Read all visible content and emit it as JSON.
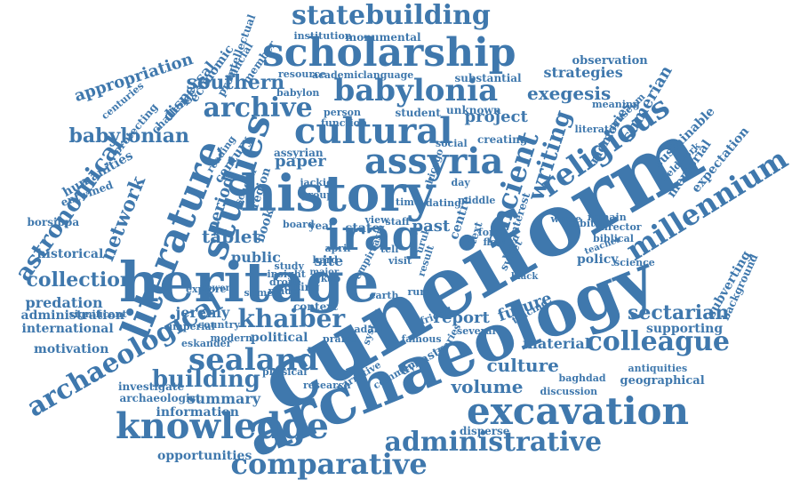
{
  "word_cloud": {
    "text_color": "#3f78ad",
    "background_color": "#ffffff",
    "words": [
      {
        "text": "cuneiform"
      },
      {
        "text": "archaeology"
      },
      {
        "text": "heritage"
      },
      {
        "text": "history"
      },
      {
        "text": "iraq"
      },
      {
        "text": "scholarship"
      },
      {
        "text": "literature"
      },
      {
        "text": "studies"
      },
      {
        "text": "cultural"
      },
      {
        "text": "assyria"
      },
      {
        "text": "babylonia"
      },
      {
        "text": "statebuilding"
      },
      {
        "text": "excavation"
      },
      {
        "text": "knowledge"
      },
      {
        "text": "comparative"
      },
      {
        "text": "administrative"
      },
      {
        "text": "ancient"
      },
      {
        "text": "religious"
      },
      {
        "text": "millennium"
      },
      {
        "text": "archaeological"
      },
      {
        "text": "sealand"
      },
      {
        "text": "colleague"
      },
      {
        "text": "khaiber"
      },
      {
        "text": "astronomical"
      },
      {
        "text": "archive"
      },
      {
        "text": "writing"
      },
      {
        "text": "building"
      },
      {
        "text": "babylonian"
      },
      {
        "text": "collection"
      },
      {
        "text": "network"
      },
      {
        "text": "sectarian"
      },
      {
        "text": "exegesis"
      },
      {
        "text": "southern"
      },
      {
        "text": "culture"
      },
      {
        "text": "volume"
      },
      {
        "text": "appropriation"
      },
      {
        "text": "project"
      },
      {
        "text": "strategies"
      },
      {
        "text": "tablet"
      },
      {
        "text": "period"
      },
      {
        "text": "paper"
      },
      {
        "text": "jeremy"
      },
      {
        "text": "predation"
      },
      {
        "text": "information"
      },
      {
        "text": "summary"
      },
      {
        "text": "opportunities"
      },
      {
        "text": "report"
      },
      {
        "text": "future"
      },
      {
        "text": "material"
      },
      {
        "text": "supporting"
      },
      {
        "text": "sumerian"
      },
      {
        "text": "sustainable"
      },
      {
        "text": "expectation"
      },
      {
        "text": "memories"
      },
      {
        "text": "memorial"
      },
      {
        "text": "subverting"
      },
      {
        "text": "policy"
      },
      {
        "text": "motivation"
      },
      {
        "text": "administration"
      },
      {
        "text": "international"
      },
      {
        "text": "historical"
      },
      {
        "text": "humanities"
      },
      {
        "text": "protecting"
      },
      {
        "text": "dispersal"
      },
      {
        "text": "economic"
      },
      {
        "text": "challenge"
      },
      {
        "text": "century"
      },
      {
        "text": "editing"
      },
      {
        "text": "context"
      },
      {
        "text": "public"
      },
      {
        "text": "political"
      },
      {
        "text": "site"
      },
      {
        "text": "past"
      },
      {
        "text": "centre"
      },
      {
        "text": "text"
      },
      {
        "text": "state"
      },
      {
        "text": "year"
      },
      {
        "text": "book"
      },
      {
        "text": "region"
      },
      {
        "text": "assyrian"
      },
      {
        "text": "student"
      },
      {
        "text": "unknown"
      },
      {
        "text": "creating"
      },
      {
        "text": "substantial"
      },
      {
        "text": "monumental"
      },
      {
        "text": "institution"
      },
      {
        "text": "intellectual"
      },
      {
        "text": "provincial"
      },
      {
        "text": "member"
      },
      {
        "text": "observation"
      },
      {
        "text": "meaning"
      },
      {
        "text": "museum"
      },
      {
        "text": "fieldwork"
      },
      {
        "text": "background"
      },
      {
        "text": "antiquities"
      },
      {
        "text": "discussion"
      },
      {
        "text": "geographical"
      },
      {
        "text": "baghdad"
      },
      {
        "text": "dynasty"
      },
      {
        "text": "disperse"
      },
      {
        "text": "narrative"
      },
      {
        "text": "comment"
      },
      {
        "text": "research"
      },
      {
        "text": "investigate"
      },
      {
        "text": "archaeologist"
      },
      {
        "text": "eskander"
      },
      {
        "text": "modern"
      },
      {
        "text": "physical"
      },
      {
        "text": "imperial"
      },
      {
        "text": "country"
      },
      {
        "text": "significant"
      },
      {
        "text": "borsippa"
      },
      {
        "text": "entwined"
      },
      {
        "text": "reading"
      },
      {
        "text": "centuries"
      },
      {
        "text": "sumer"
      },
      {
        "text": "made"
      },
      {
        "text": "explore"
      },
      {
        "text": "power"
      },
      {
        "text": "insight"
      },
      {
        "text": "drone"
      },
      {
        "text": "hard"
      },
      {
        "text": "gkab"
      },
      {
        "text": "earth"
      },
      {
        "text": "rural"
      },
      {
        "text": "adart"
      },
      {
        "text": "praise"
      },
      {
        "text": "friend"
      },
      {
        "text": "famous"
      },
      {
        "text": "diaries"
      },
      {
        "text": "several"
      },
      {
        "text": "tracing"
      },
      {
        "text": "black"
      },
      {
        "text": "science"
      },
      {
        "text": "teacher"
      },
      {
        "text": "biblical"
      },
      {
        "text": "director"
      },
      {
        "text": "remain"
      },
      {
        "text": "wrote"
      },
      {
        "text": "form"
      },
      {
        "text": "sweet"
      },
      {
        "text": "word"
      },
      {
        "text": "interest"
      },
      {
        "text": "habit"
      },
      {
        "text": "middle"
      },
      {
        "text": "dating"
      },
      {
        "text": "time"
      },
      {
        "text": "group"
      },
      {
        "text": "jackie"
      },
      {
        "text": "april"
      },
      {
        "text": "asia"
      },
      {
        "text": "view"
      },
      {
        "text": "staff"
      },
      {
        "text": "uruk"
      },
      {
        "text": "flow"
      },
      {
        "text": "result"
      },
      {
        "text": "tell"
      },
      {
        "text": "empire"
      },
      {
        "text": "study"
      },
      {
        "text": "major"
      },
      {
        "text": "person"
      },
      {
        "text": "function"
      },
      {
        "text": "academic"
      },
      {
        "text": "language"
      },
      {
        "text": "resource"
      },
      {
        "text": "babylon"
      },
      {
        "text": "social"
      },
      {
        "text": "chicago"
      },
      {
        "text": "literate"
      },
      {
        "text": "day"
      },
      {
        "text": "board"
      },
      {
        "text": "visit"
      },
      {
        "text": "system"
      },
      {
        "text": "scholar"
      }
    ]
  }
}
